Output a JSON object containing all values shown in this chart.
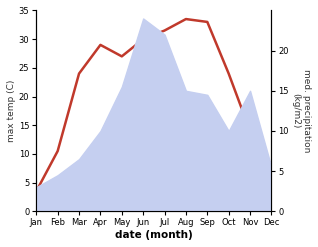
{
  "months": [
    "Jan",
    "Feb",
    "Mar",
    "Apr",
    "May",
    "Jun",
    "Jul",
    "Aug",
    "Sep",
    "Oct",
    "Nov",
    "Dec"
  ],
  "temperature": [
    3.5,
    10.5,
    24.0,
    29.0,
    27.0,
    30.0,
    31.5,
    33.5,
    33.0,
    24.0,
    14.0,
    8.0
  ],
  "precipitation": [
    3.0,
    4.5,
    6.5,
    10.0,
    15.5,
    24.0,
    22.0,
    15.0,
    14.5,
    10.0,
    15.0,
    5.5
  ],
  "temp_color": "#c0392b",
  "precip_fill_color": "#c5cff0",
  "temp_ylim": [
    0,
    35
  ],
  "precip_ylim": [
    0,
    25
  ],
  "precip_yticks": [
    0,
    5,
    10,
    15,
    20
  ],
  "temp_yticks": [
    0,
    5,
    10,
    15,
    20,
    25,
    30,
    35
  ],
  "xlabel": "date (month)",
  "ylabel_left": "max temp (C)",
  "ylabel_right": "med. precipitation\n(kg/m2)"
}
